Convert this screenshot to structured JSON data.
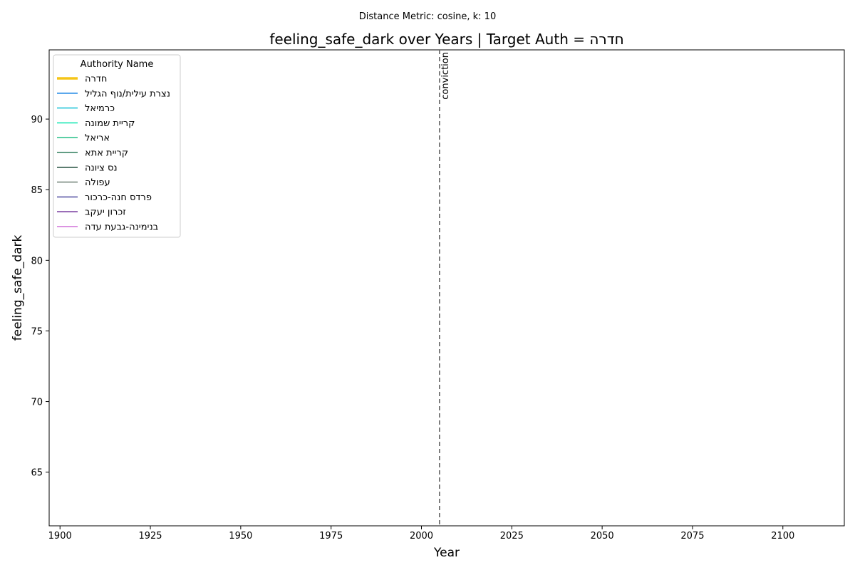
{
  "chart_data": {
    "type": "line",
    "suptitle": "Distance Metric: cosine, k: 10",
    "title": "feeling_safe_dark over Years | Target Auth = חדרה",
    "xlabel": "Year",
    "ylabel": "feeling_safe_dark",
    "xlim": [
      1897,
      2117
    ],
    "ylim": [
      61.2,
      94.9
    ],
    "x_ticks": [
      1900,
      1925,
      1950,
      1975,
      2000,
      2025,
      2050,
      2075,
      2100
    ],
    "y_ticks": [
      65,
      70,
      75,
      80,
      85,
      90
    ],
    "grid": false,
    "vline": {
      "x": 2005,
      "label": "conviction",
      "color": "#666666"
    },
    "legend": {
      "title": "Authority Name",
      "placement": "top-left"
    },
    "series": [
      {
        "name": "חדרה",
        "color": "#f5c518",
        "highlight": true,
        "x": [],
        "y": []
      },
      {
        "name": "נצרת עילית/נוף הגליל",
        "color": "#1e88e5",
        "x": [],
        "y": []
      },
      {
        "name": "כרמיאל",
        "color": "#26c6da",
        "x": [],
        "y": []
      },
      {
        "name": "קריית שמונה",
        "color": "#1de9b6",
        "x": [],
        "y": []
      },
      {
        "name": "אריאל",
        "color": "#34c38f",
        "x": [],
        "y": []
      },
      {
        "name": "קריית אתא",
        "color": "#2e7d5b",
        "x": [],
        "y": []
      },
      {
        "name": "נס ציונה",
        "color": "#2f5948",
        "x": [],
        "y": []
      },
      {
        "name": "עפולה",
        "color": "#7a8a80",
        "x": [],
        "y": []
      },
      {
        "name": "פרדס חנה-כרכור",
        "color": "#5e5aa8",
        "x": [],
        "y": []
      },
      {
        "name": "זכרון יעקב",
        "color": "#7b3fa0",
        "x": [],
        "y": []
      },
      {
        "name": "בנימינה-גבעת עדה",
        "color": "#d070d8",
        "x": [],
        "y": []
      }
    ]
  }
}
